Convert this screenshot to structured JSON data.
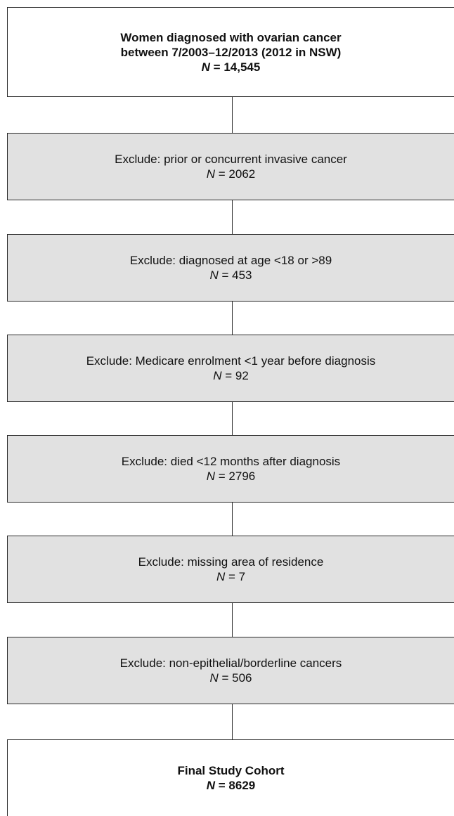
{
  "flowchart": {
    "start": {
      "lines": [
        "Women diagnosed with ovarian cancer",
        "between 7/2003–12/2013 (2012 in NSW)"
      ],
      "n_label": "N",
      "n_value": "= 14,545"
    },
    "exclusions": [
      {
        "text": "Exclude: prior or concurrent invasive cancer",
        "n_label": "N",
        "n_value": "= 2062"
      },
      {
        "text": "Exclude: diagnosed at age <18 or >89",
        "n_label": "N",
        "n_value": "= 453"
      },
      {
        "text": "Exclude: Medicare enrolment <1 year before diagnosis",
        "n_label": "N",
        "n_value": "= 92"
      },
      {
        "text": "Exclude: died <12 months after diagnosis",
        "n_label": "N",
        "n_value": "= 2796"
      },
      {
        "text": "Exclude: missing area of residence",
        "n_label": "N",
        "n_value": "= 7"
      },
      {
        "text": "Exclude: non-epithelial/borderline cancers",
        "n_label": "N",
        "n_value": "= 506"
      }
    ],
    "final": {
      "title": "Final Study Cohort",
      "n_label": "N",
      "n_value": "= 8629"
    }
  }
}
